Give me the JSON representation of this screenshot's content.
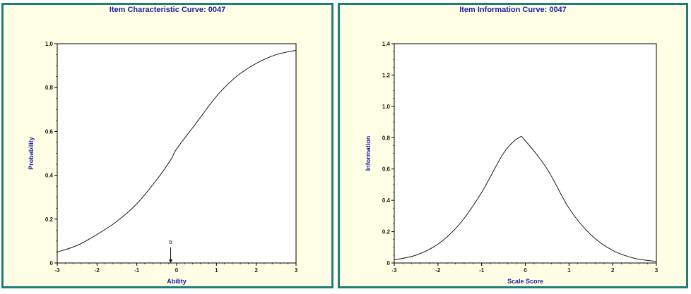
{
  "chart_data": [
    {
      "type": "line",
      "title": "Item Characteristic Curve: 0047",
      "xlabel": "Ability",
      "ylabel": "Probability",
      "xlim": [
        -3,
        3
      ],
      "ylim": [
        0,
        1.0
      ],
      "x_ticks": [
        "-3",
        "-2",
        "-1",
        "0",
        "1",
        "2",
        "3"
      ],
      "y_ticks": [
        "0",
        "0.2",
        "0.4",
        "0.6",
        "0.8",
        "1.0"
      ],
      "grid": false,
      "series": [
        {
          "x": [
            -3,
            -2.5,
            -2,
            -1.5,
            -1,
            -0.5,
            -0.15,
            0,
            0.5,
            1,
            1.5,
            2,
            2.5,
            3
          ],
          "values": [
            0.05,
            0.08,
            0.13,
            0.19,
            0.27,
            0.38,
            0.47,
            0.52,
            0.64,
            0.76,
            0.85,
            0.91,
            0.95,
            0.97
          ]
        }
      ],
      "marker": {
        "label": "b",
        "x": -0.15
      }
    },
    {
      "type": "line",
      "title": "Item Information Curve: 0047",
      "xlabel": "Scale Score",
      "ylabel": "Information",
      "xlim": [
        -3,
        3
      ],
      "ylim": [
        0,
        1.4
      ],
      "x_ticks": [
        "-3",
        "-2",
        "-1",
        "0",
        "1",
        "2",
        "3"
      ],
      "y_ticks": [
        "0",
        "0.2",
        "0.4",
        "0.6",
        "0.8",
        "1.0",
        "1.2",
        "1.4"
      ],
      "grid": false,
      "series": [
        {
          "x": [
            -3,
            -2.5,
            -2,
            -1.5,
            -1,
            -0.5,
            -0.15,
            0,
            0.5,
            1,
            1.5,
            2,
            2.5,
            3
          ],
          "values": [
            0.02,
            0.05,
            0.12,
            0.25,
            0.45,
            0.7,
            0.8,
            0.78,
            0.6,
            0.35,
            0.18,
            0.08,
            0.03,
            0.01
          ]
        }
      ]
    }
  ]
}
